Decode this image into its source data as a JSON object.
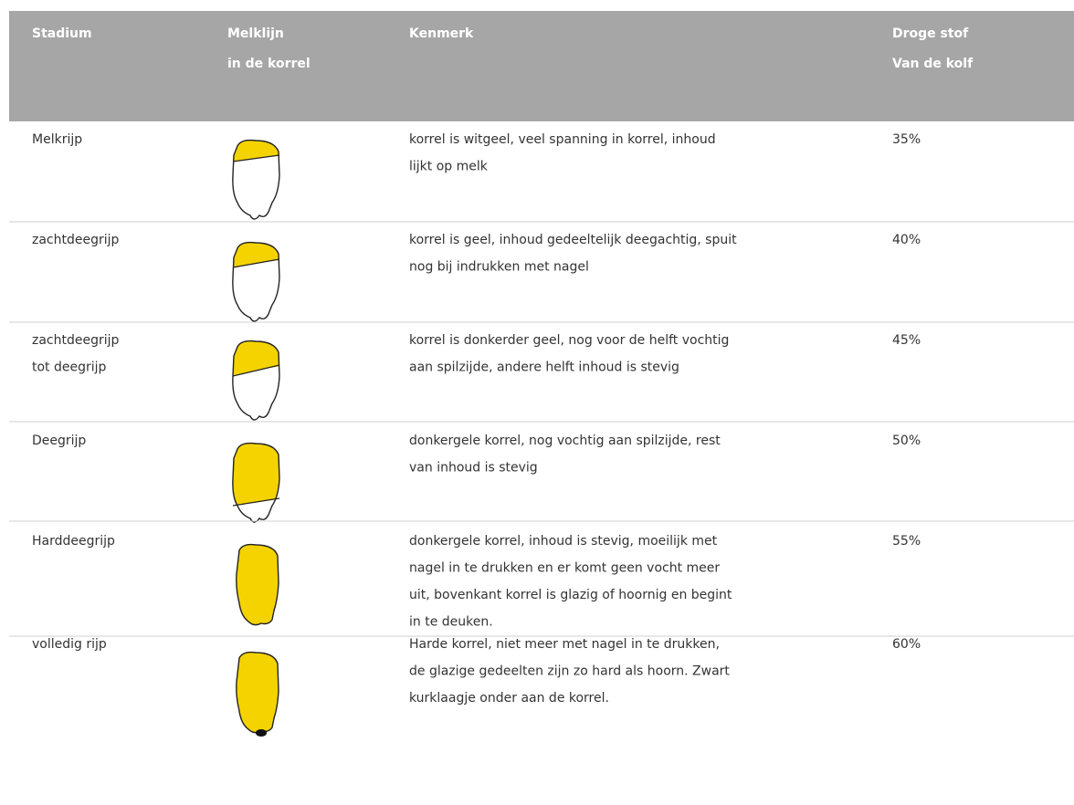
{
  "table": {
    "header": [
      [
        "Stadium"
      ],
      [
        "Melklijn",
        "in de korrel"
      ],
      [
        "Kenmerk"
      ],
      [
        "Droge stof",
        "Van de kolf"
      ]
    ],
    "rows": [
      {
        "stadium": [
          "Melkrijp"
        ],
        "kenmerk": [
          "korrel is witgeel, veel spanning in korrel, inhoud",
          "lijkt op melk"
        ],
        "droge_stof": "35%"
      },
      {
        "stadium": [
          "zachtdeegrijp"
        ],
        "kenmerk": [
          "korrel is geel, inhoud gedeeltelijk deegachtig, spuit",
          "nog bij indrukken met nagel"
        ],
        "droge_stof": "40%"
      },
      {
        "stadium": [
          "zachtdeegrijp",
          "tot deegrijp"
        ],
        "kenmerk": [
          "korrel is donkerder geel, nog voor de helft vochtig",
          "aan spilzijde, andere helft inhoud is stevig"
        ],
        "droge_stof": "45%"
      },
      {
        "stadium": [
          "Deegrijp"
        ],
        "kenmerk": [
          "donkergele korrel, nog vochtig aan spilzijde, rest",
          "van inhoud is stevig"
        ],
        "droge_stof": "50%"
      },
      {
        "stadium": [
          "Harddeegrijp"
        ],
        "kenmerk": [
          "donkergele korrel, inhoud is stevig, moeilijk met",
          "nagel in te drukken en er komt geen vocht meer",
          "uit, bovenkant korrel is glazig of hoornig en begint",
          "in te deuken."
        ],
        "droge_stof": "55%"
      },
      {
        "stadium": [
          "volledig rijp"
        ],
        "kenmerk": [
          "Harde korrel, niet meer met nagel in te drukken,",
          "de glazige gedeelten zijn zo hard als hoorn. Zwart",
          "kurklaagje onder aan de korrel."
        ],
        "droge_stof": "60%"
      }
    ]
  }
}
